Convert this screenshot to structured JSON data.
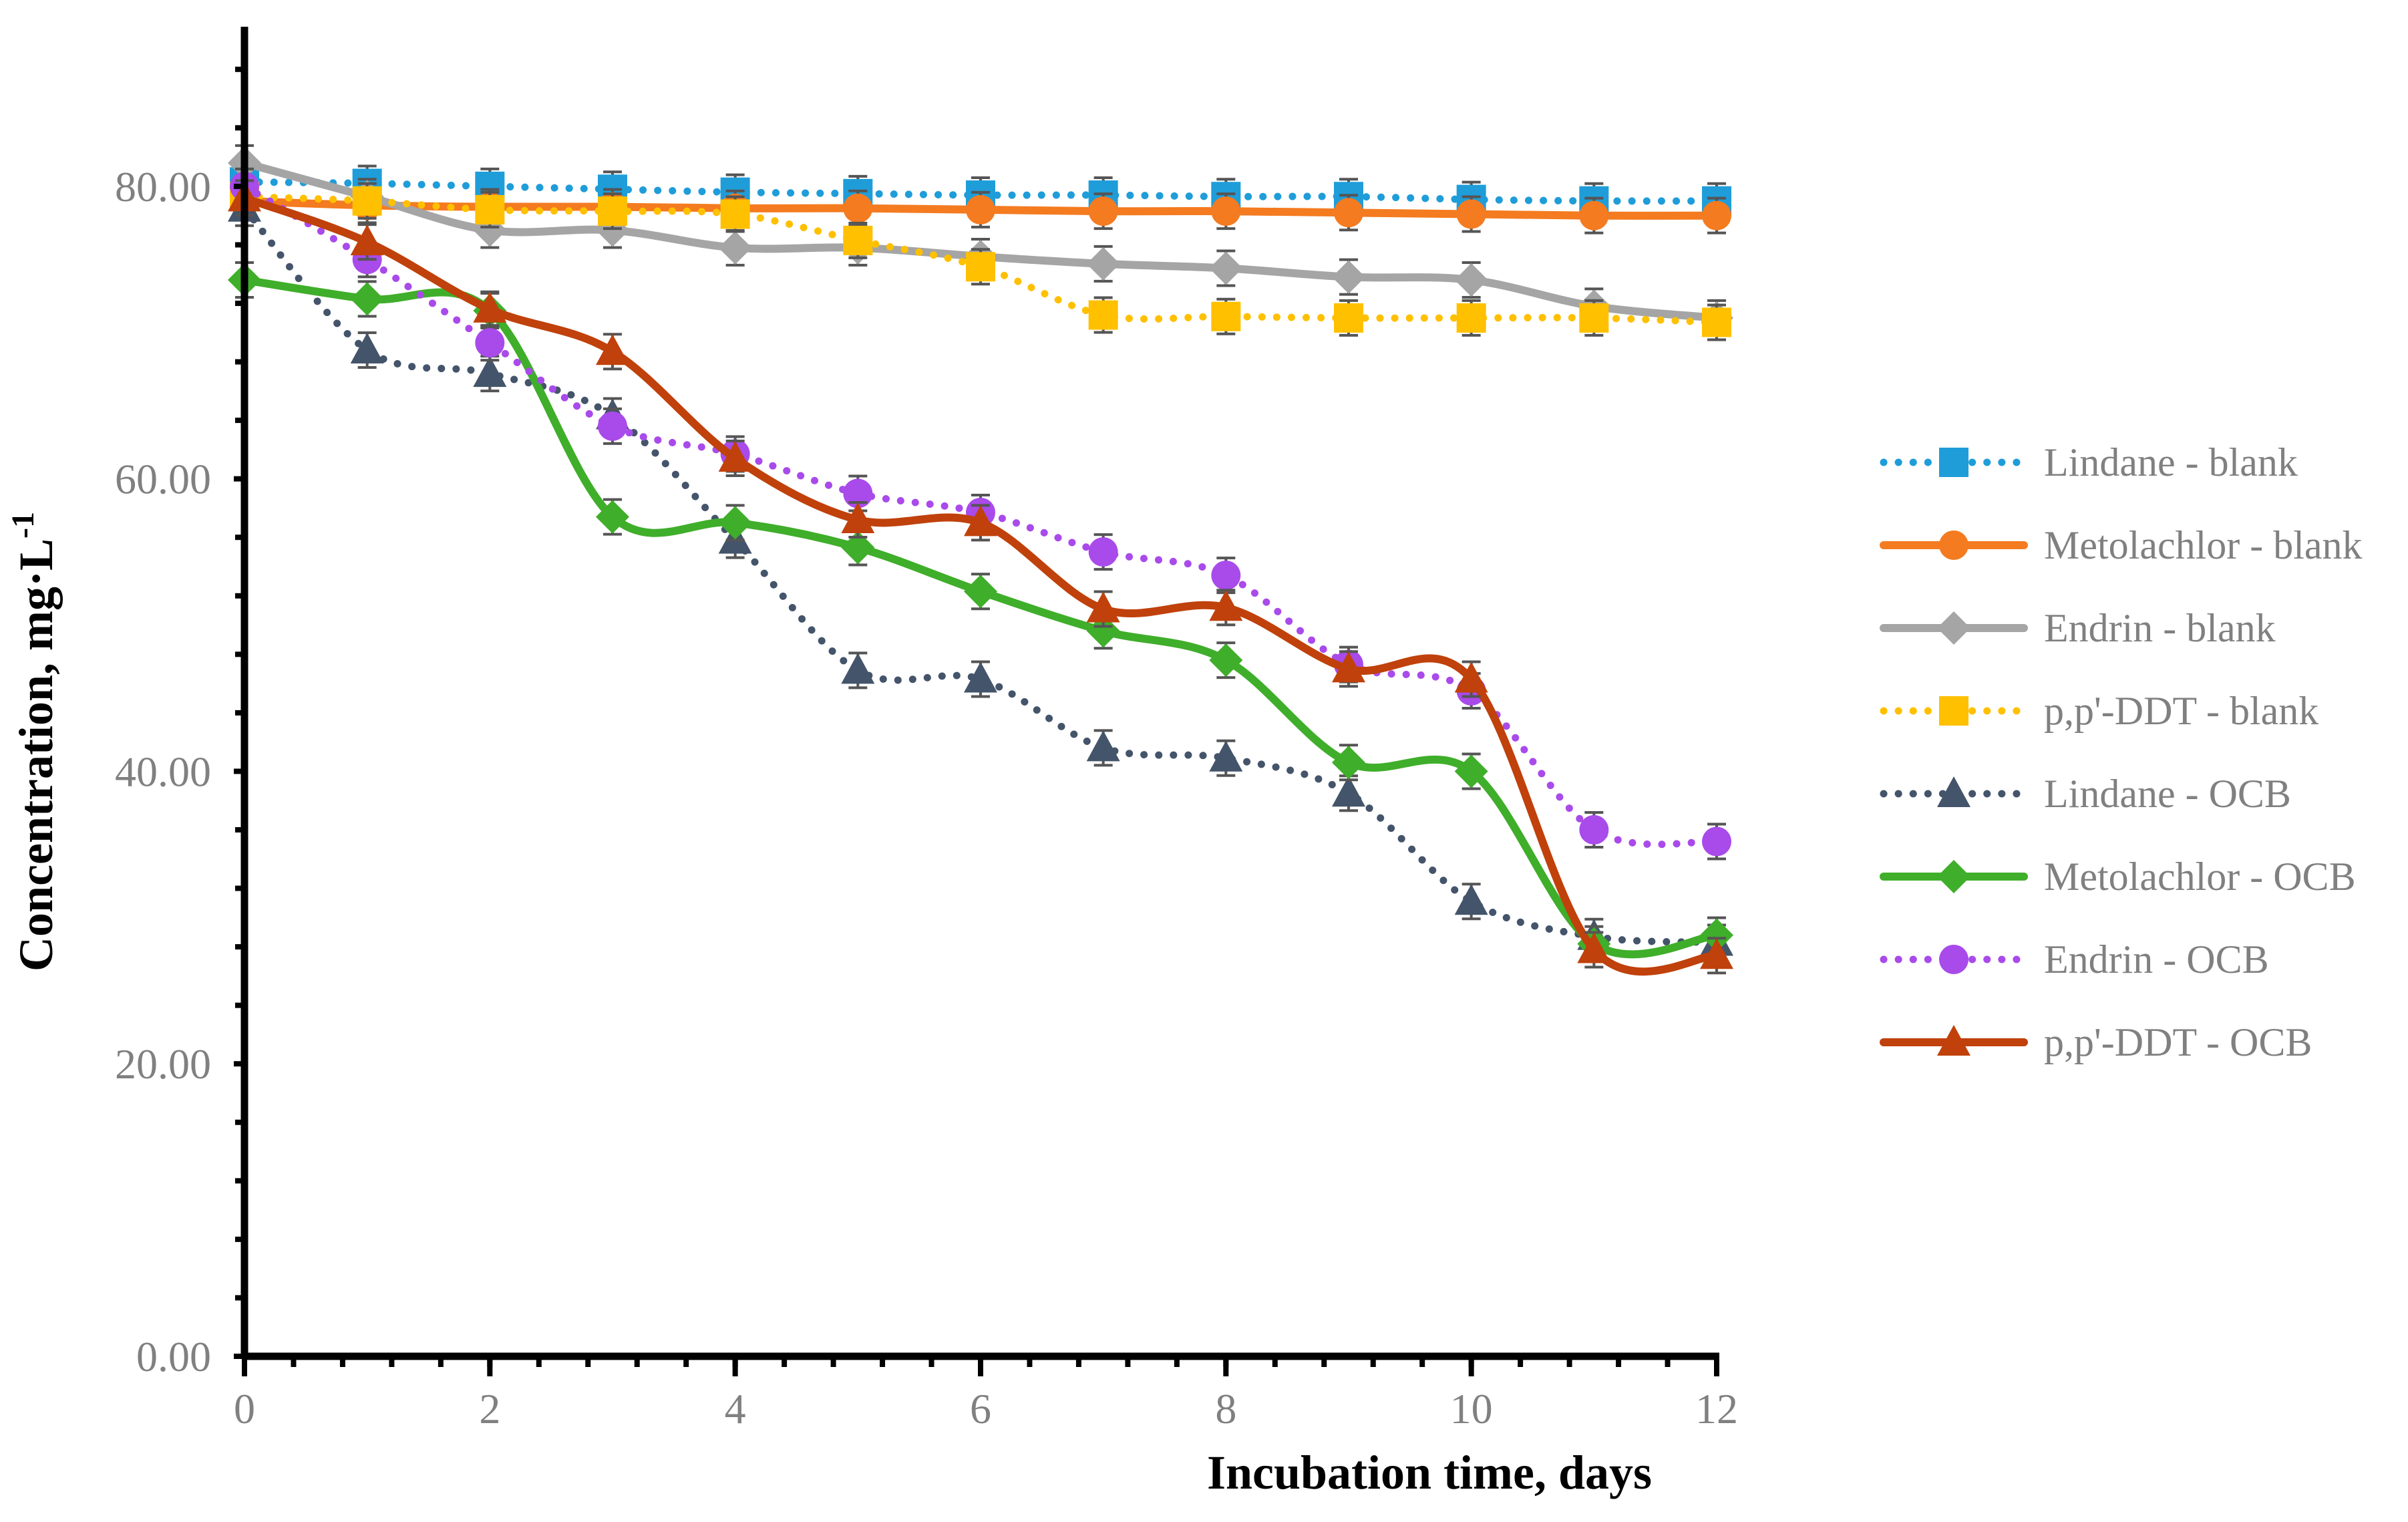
{
  "chart_data": {
    "type": "line",
    "title": "",
    "xlabel": "Incubation time, days",
    "ylabel": "Concentration, mg·L",
    "ylabel_superscript": "-1",
    "xlim": [
      0,
      12
    ],
    "ylim": [
      0,
      90
    ],
    "x_ticks": [
      0,
      2,
      4,
      6,
      8,
      10,
      12
    ],
    "x_tick_labels": [
      "0",
      "2",
      "4",
      "6",
      "8",
      "10",
      "12"
    ],
    "y_ticks": [
      0,
      20,
      40,
      60,
      80
    ],
    "y_tick_labels": [
      "0.00",
      "20.00",
      "40.00",
      "60.00",
      "80.00"
    ],
    "grid": false,
    "legend_position": "right",
    "x": [
      0,
      1,
      2,
      3,
      4,
      5,
      6,
      7,
      8,
      9,
      10,
      11,
      12
    ],
    "series": [
      {
        "name": "Lindane - blank",
        "color": "#1F9DD9",
        "dash": "dotted",
        "marker": "square",
        "values": [
          80.3,
          80.2,
          80.0,
          79.8,
          79.6,
          79.5,
          79.4,
          79.4,
          79.3,
          79.3,
          79.1,
          79.0,
          79.0
        ]
      },
      {
        "name": "Metolachlor - blank",
        "color": "#F47B20",
        "dash": "solid",
        "marker": "circle",
        "values": [
          79.0,
          78.7,
          78.6,
          78.6,
          78.5,
          78.5,
          78.4,
          78.3,
          78.3,
          78.2,
          78.1,
          78.0,
          78.0
        ]
      },
      {
        "name": "Endrin - blank",
        "color": "#A5A5A5",
        "dash": "solid",
        "marker": "diamond",
        "values": [
          81.6,
          79.3,
          77.0,
          77.0,
          75.8,
          75.8,
          75.2,
          74.7,
          74.4,
          73.8,
          73.6,
          71.8,
          71.0
        ]
      },
      {
        "name": "p,p'-DDT - blank",
        "color": "#FFC000",
        "dash": "dotted",
        "marker": "square",
        "values": [
          79.3,
          79.0,
          78.4,
          78.3,
          78.1,
          76.3,
          74.5,
          71.2,
          71.1,
          71.0,
          71.0,
          71.0,
          70.7
        ]
      },
      {
        "name": "Lindane - OCB",
        "color": "#44546A",
        "dash": "dotted",
        "marker": "triangle",
        "values": [
          78.5,
          68.8,
          67.2,
          64.3,
          55.8,
          46.9,
          46.3,
          41.6,
          40.9,
          38.5,
          31.1,
          28.7,
          28.3
        ]
      },
      {
        "name": "Metolachlor - OCB",
        "color": "#3FAE2A",
        "dash": "solid",
        "marker": "diamond",
        "values": [
          73.6,
          72.3,
          71.5,
          57.4,
          57.0,
          55.3,
          52.3,
          49.6,
          47.6,
          40.6,
          40.0,
          28.2,
          28.8
        ]
      },
      {
        "name": "Endrin - OCB",
        "color": "#A94AEA",
        "dash": "dotted",
        "marker": "circle",
        "values": [
          80.0,
          75.0,
          69.3,
          63.6,
          61.7,
          59.0,
          57.7,
          55.0,
          53.4,
          47.3,
          45.5,
          36.0,
          35.2
        ]
      },
      {
        "name": "p,p'-DDT - OCB",
        "color": "#C0410B",
        "dash": "solid",
        "marker": "triangle",
        "values": [
          79.2,
          76.2,
          71.6,
          68.7,
          61.4,
          57.2,
          57.0,
          51.1,
          51.2,
          47.0,
          46.3,
          27.8,
          27.4
        ]
      }
    ]
  }
}
